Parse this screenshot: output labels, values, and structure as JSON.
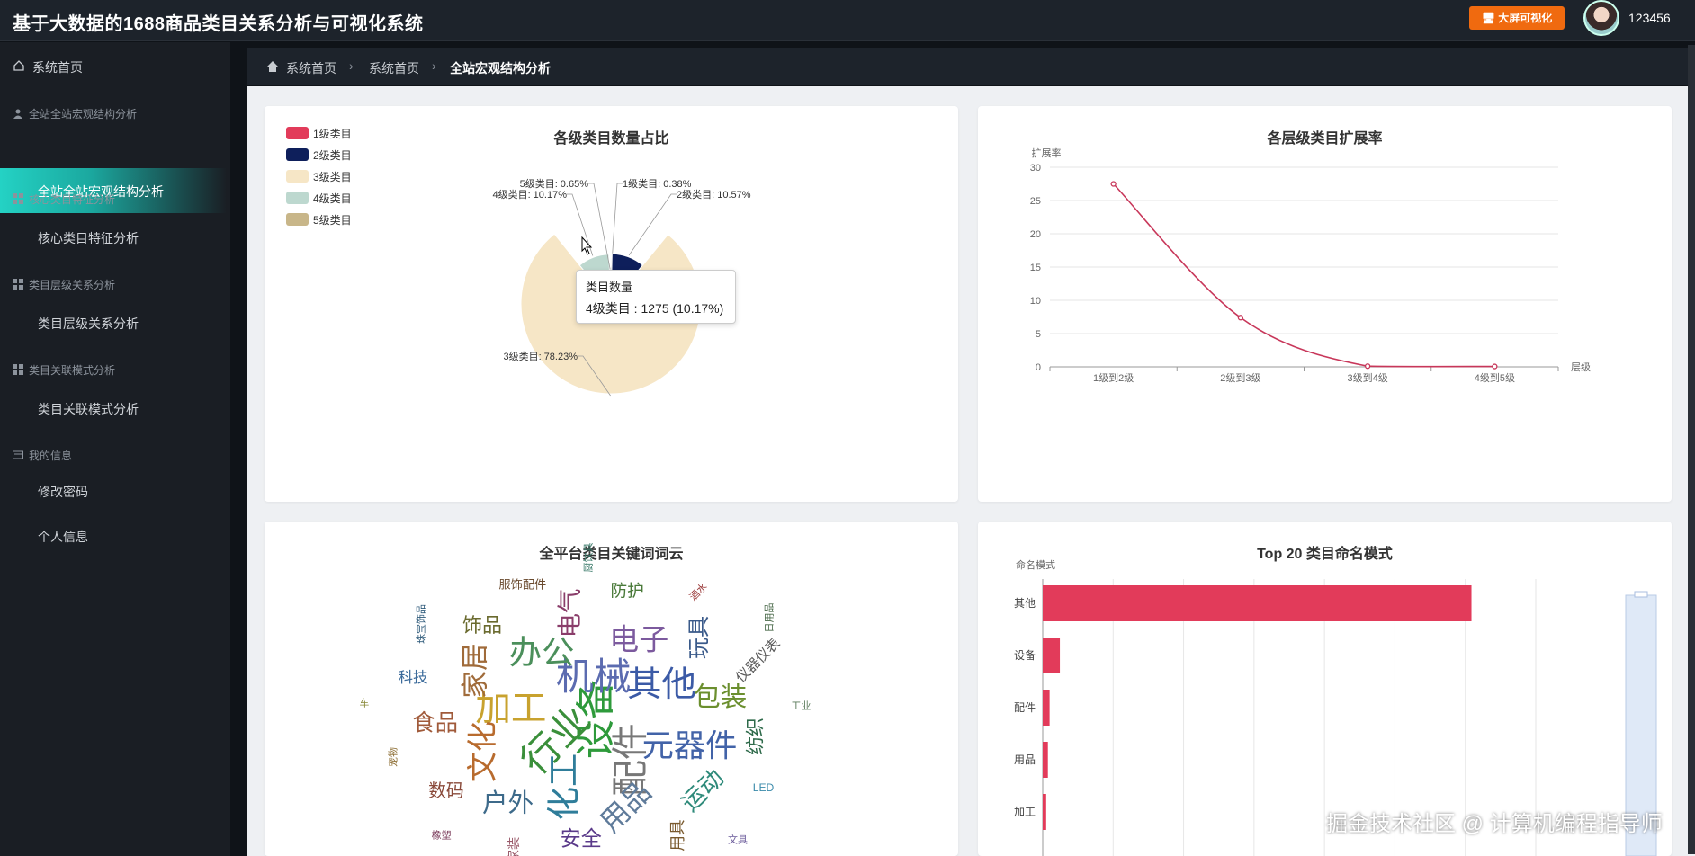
{
  "header": {
    "title": "基于大数据的1688商品类目关系分析与可视化系统",
    "bigscreen_label": "大屏可视化",
    "username": "123456"
  },
  "sidebar": {
    "home": "系统首页",
    "groups": [
      {
        "label": "全站全站宏观结构分析",
        "item": "全站全站宏观结构分析"
      },
      {
        "label": "核心类目特征分析",
        "item": "核心类目特征分析"
      },
      {
        "label": "类目层级关系分析",
        "item": "类目层级关系分析"
      },
      {
        "label": "类目关联模式分析",
        "item": "类目关联模式分析"
      },
      {
        "label": "我的信息",
        "items": [
          "修改密码",
          "个人信息"
        ]
      }
    ]
  },
  "breadcrumb": [
    "系统首页",
    "系统首页",
    "全站宏观结构分析"
  ],
  "watermark": "掘金技术社区 @ 计算机编程指导师",
  "tooltip": {
    "title": "类目数量",
    "line": "4级类目 : 1275 (10.17%)"
  },
  "charts": {
    "pie": {
      "title": "各级类目数量占比",
      "legend": [
        "1级类目",
        "2级类目",
        "3级类目",
        "4级类目",
        "5级类目"
      ],
      "labels": [
        "1级类目: 0.38%",
        "2级类目: 10.57%",
        "3级类目: 78.23%",
        "4级类目: 10.17%",
        "5级类目: 0.65%"
      ]
    },
    "line": {
      "title": "各层级类目扩展率",
      "ylabel": "扩展率",
      "xlabel": "层级",
      "yticks": [
        "0",
        "5",
        "10",
        "15",
        "20",
        "25",
        "30"
      ],
      "xticks": [
        "1级到2级",
        "2级到3级",
        "3级到4级",
        "4级到5级"
      ]
    },
    "wordcloud": {
      "title": "全平台类目关键词词云",
      "words": [
        {
          "t": "设备",
          "color": "#2e9a3b"
        },
        {
          "t": "行业",
          "color": "#3a8f3a"
        },
        {
          "t": "机械",
          "color": "#5b6bb0"
        },
        {
          "t": "配件",
          "color": "#777"
        },
        {
          "t": "加工",
          "color": "#c8a22e"
        },
        {
          "t": "其他",
          "color": "#3b5aa6"
        },
        {
          "t": "化工",
          "color": "#2f7d9a"
        },
        {
          "t": "办公",
          "color": "#4b8f5b"
        },
        {
          "t": "元器件",
          "color": "#4263a8"
        },
        {
          "t": "文化",
          "color": "#b86b2e"
        },
        {
          "t": "电子",
          "color": "#7c5a9e"
        },
        {
          "t": "用品",
          "color": "#5f7b9a"
        },
        {
          "t": "家居",
          "color": "#a06b3a"
        },
        {
          "t": "包装",
          "color": "#6b8f2e"
        },
        {
          "t": "户外",
          "color": "#3d6a8a"
        },
        {
          "t": "电气",
          "color": "#8a3d6a"
        },
        {
          "t": "运动",
          "color": "#2e8a7a"
        },
        {
          "t": "食品",
          "color": "#a05a3a"
        },
        {
          "t": "玩具",
          "color": "#3a5a8a"
        },
        {
          "t": "安全",
          "color": "#5a3a8a"
        },
        {
          "t": "饰品",
          "color": "#6a6a2e"
        },
        {
          "t": "纺织",
          "color": "#2e6a4a"
        },
        {
          "t": "数码",
          "color": "#8a4a3a"
        },
        {
          "t": "防护",
          "color": "#4a7a3a"
        },
        {
          "t": "用具",
          "color": "#7a5a2e"
        },
        {
          "t": "科技",
          "color": "#3a6a9a"
        },
        {
          "t": "仪器仪表",
          "color": "#5a5a5a"
        },
        {
          "t": "家装",
          "color": "#9a5a6a"
        },
        {
          "t": "服饰配件",
          "color": "#6a4a2e"
        },
        {
          "t": "LED",
          "color": "#3a8aaa"
        },
        {
          "t": "宠物",
          "color": "#8a6a2e"
        },
        {
          "t": "酒水",
          "color": "#9a3a3a"
        },
        {
          "t": "民族乐器",
          "color": "#4a4a8a"
        },
        {
          "t": "珠宝饰品",
          "color": "#2e5a7a"
        },
        {
          "t": "工业",
          "color": "#5a7a5a"
        },
        {
          "t": "橡塑",
          "color": "#7a3a5a"
        },
        {
          "t": "厨饮具",
          "color": "#3a7a6a"
        },
        {
          "t": "文具",
          "color": "#6a5a9a"
        },
        {
          "t": "车",
          "color": "#8a8a3a"
        },
        {
          "t": "日用品",
          "color": "#4a6a4a"
        }
      ]
    },
    "bar": {
      "title": "Top 20 类目命名模式",
      "ylabel": "命名模式",
      "categories": [
        "其他",
        "设备",
        "配件",
        "用品",
        "加工"
      ]
    }
  },
  "chart_data": [
    {
      "type": "pie",
      "title": "各级类目数量占比",
      "categories": [
        "1级类目",
        "2级类目",
        "3级类目",
        "4级类目",
        "5级类目"
      ],
      "values": [
        0.38,
        10.57,
        78.23,
        10.17,
        0.65
      ],
      "colors": [
        "#e23b5a",
        "#0e1f5b",
        "#f6e6c6",
        "#bdd8cf",
        "#c8b689"
      ],
      "rose": true,
      "legend_position": "top-left"
    },
    {
      "type": "line",
      "title": "各层级类目扩展率",
      "x": [
        "1级到2级",
        "2级到3级",
        "3级到4级",
        "4级到5级"
      ],
      "y": [
        27.5,
        7.4,
        0.1,
        0.06
      ],
      "ylim": [
        0,
        30
      ],
      "xlabel": "层级",
      "ylabel": "扩展率",
      "color": "#c8375a",
      "smooth": true,
      "grid": true
    },
    {
      "type": "bar",
      "title": "Top 20 类目命名模式",
      "orientation": "horizontal",
      "categories": [
        "其他",
        "设备",
        "配件",
        "用品",
        "加工"
      ],
      "values": [
        100,
        4,
        1.6,
        1.2,
        0.8
      ],
      "ylabel": "命名模式",
      "color": "#e23b5a",
      "grid": true
    }
  ]
}
